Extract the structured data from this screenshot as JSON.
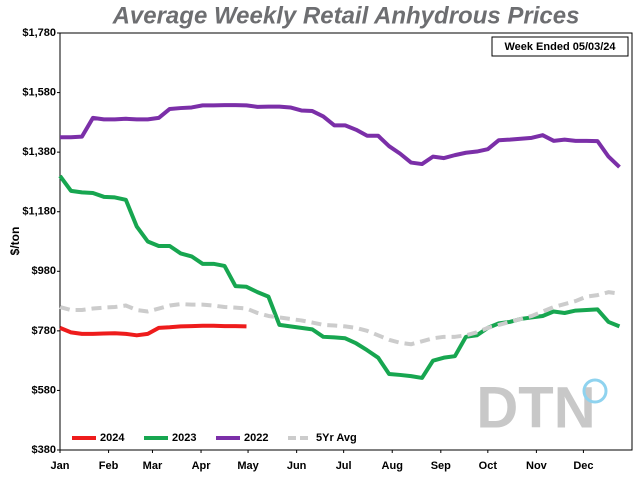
{
  "chart_data": {
    "type": "line",
    "title": "Average Weekly Retail Anhydrous Prices",
    "annotation": "Week Ended 05/03/24",
    "watermark": "DTN",
    "ylabel": "$/ton",
    "x": [
      0,
      7,
      14,
      21,
      28,
      35,
      42,
      49,
      56,
      63,
      70,
      77,
      84,
      91,
      98,
      105,
      112,
      119,
      126,
      133,
      140,
      147,
      154,
      161,
      168,
      175,
      182,
      189,
      196,
      203,
      210,
      217,
      224,
      231,
      238,
      245,
      252,
      259,
      266,
      273,
      280,
      287,
      294,
      301,
      308,
      315,
      322,
      329,
      336,
      343,
      350,
      357
    ],
    "xlim": [
      0,
      365
    ],
    "xticks": [
      {
        "value": 0,
        "label": "Jan"
      },
      {
        "value": 31,
        "label": "Feb"
      },
      {
        "value": 59,
        "label": "Mar"
      },
      {
        "value": 90,
        "label": "Apr"
      },
      {
        "value": 120,
        "label": "May"
      },
      {
        "value": 151,
        "label": "Jun"
      },
      {
        "value": 181,
        "label": "Jul"
      },
      {
        "value": 212,
        "label": "Aug"
      },
      {
        "value": 243,
        "label": "Sep"
      },
      {
        "value": 273,
        "label": "Oct"
      },
      {
        "value": 304,
        "label": "Nov"
      },
      {
        "value": 334,
        "label": "Dec"
      }
    ],
    "ylim": [
      380,
      1780
    ],
    "yticks": [
      {
        "value": 380,
        "label": "$380"
      },
      {
        "value": 580,
        "label": "$580"
      },
      {
        "value": 780,
        "label": "$780"
      },
      {
        "value": 980,
        "label": "$980"
      },
      {
        "value": 1180,
        "label": "$1,180"
      },
      {
        "value": 1380,
        "label": "$1,380"
      },
      {
        "value": 1580,
        "label": "$1,580"
      },
      {
        "value": 1780,
        "label": "$1,780"
      }
    ],
    "grid": false,
    "legend": "bottom-left",
    "series": [
      {
        "name": "2024",
        "color": "#ee1c1c",
        "dashed": false,
        "values": [
          790,
          775,
          770,
          770,
          771,
          772,
          770,
          765,
          770,
          790,
          792,
          795,
          796,
          797,
          797,
          796,
          796,
          795,
          null,
          null,
          null,
          null,
          null,
          null,
          null,
          null,
          null,
          null,
          null,
          null,
          null,
          null,
          null,
          null,
          null,
          null,
          null,
          null,
          null,
          null,
          null,
          null,
          null,
          null,
          null,
          null,
          null,
          null,
          null,
          null,
          null,
          null
        ]
      },
      {
        "name": "2023",
        "color": "#17a650",
        "dashed": false,
        "values": [
          1300,
          1250,
          1245,
          1243,
          1230,
          1228,
          1220,
          1130,
          1080,
          1065,
          1065,
          1040,
          1030,
          1005,
          1005,
          998,
          930,
          928,
          910,
          895,
          800,
          795,
          790,
          785,
          760,
          758,
          755,
          738,
          715,
          690,
          635,
          632,
          628,
          622,
          680,
          690,
          695,
          760,
          765,
          790,
          805,
          810,
          820,
          825,
          830,
          845,
          840,
          848,
          850,
          852,
          810,
          795
        ]
      },
      {
        "name": "2022",
        "color": "#7b2fa8",
        "dashed": false,
        "values": [
          1430,
          1430,
          1432,
          1495,
          1490,
          1490,
          1492,
          1490,
          1490,
          1495,
          1525,
          1528,
          1530,
          1537,
          1537,
          1538,
          1538,
          1537,
          1532,
          1533,
          1533,
          1530,
          1520,
          1518,
          1500,
          1470,
          1470,
          1455,
          1435,
          1435,
          1400,
          1375,
          1345,
          1340,
          1365,
          1360,
          1370,
          1378,
          1382,
          1390,
          1420,
          1422,
          1425,
          1428,
          1437,
          1418,
          1422,
          1418,
          1418,
          1417,
          1365,
          1330
        ]
      },
      {
        "name": "5Yr Avg",
        "color": "#cccccc",
        "dashed": true,
        "values": [
          860,
          850,
          850,
          855,
          858,
          860,
          865,
          850,
          845,
          855,
          865,
          870,
          868,
          868,
          865,
          860,
          858,
          855,
          840,
          830,
          825,
          820,
          815,
          808,
          800,
          798,
          795,
          790,
          780,
          765,
          750,
          740,
          735,
          745,
          755,
          760,
          760,
          765,
          775,
          790,
          800,
          810,
          820,
          830,
          845,
          860,
          870,
          880,
          895,
          900,
          910,
          905
        ]
      }
    ]
  }
}
